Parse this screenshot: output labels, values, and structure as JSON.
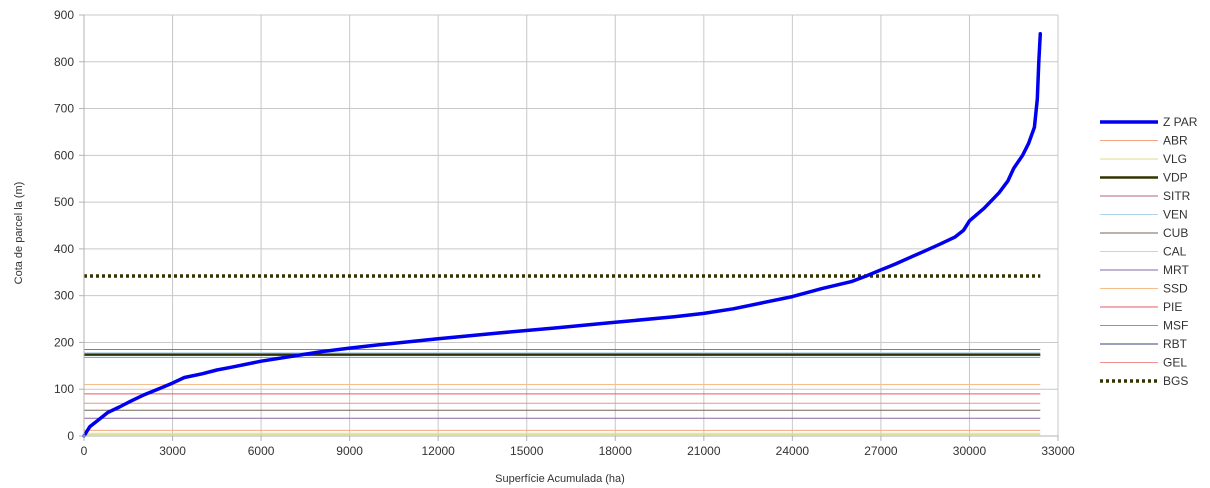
{
  "chart_data": {
    "type": "line",
    "xlabel": "Superfície Acumulada (ha)",
    "ylabel": "Cota de parcel la (m)",
    "xlim": [
      0,
      33000
    ],
    "ylim": [
      0,
      900
    ],
    "xticks": [
      0,
      3000,
      6000,
      9000,
      12000,
      15000,
      18000,
      21000,
      24000,
      27000,
      30000,
      33000
    ],
    "yticks": [
      0,
      100,
      200,
      300,
      400,
      500,
      600,
      700,
      800,
      900
    ],
    "xtick_labels": [
      "0",
      "3000",
      "6000",
      "9000",
      "12000",
      "15000",
      "18000",
      "21000",
      "24000",
      "27000",
      "30000",
      "33000"
    ],
    "ytick_labels": [
      "0",
      "100",
      "200",
      "300",
      "400",
      "500",
      "600",
      "700",
      "800",
      "900"
    ],
    "grid": true,
    "legend_position": "right",
    "series": [
      {
        "name": "Z PAR",
        "color": "#0000ee",
        "style": "solid-thick",
        "x": [
          0,
          200,
          500,
          800,
          1200,
          1600,
          2000,
          2500,
          3000,
          3400,
          4000,
          4500,
          5000,
          6000,
          7000,
          8000,
          9000,
          10000,
          12000,
          14000,
          16000,
          18000,
          20000,
          21000,
          22000,
          23000,
          24000,
          25000,
          26000,
          26500,
          27000,
          27500,
          28000,
          28500,
          29000,
          29500,
          29800,
          30000,
          30500,
          31000,
          31300,
          31500,
          31800,
          32000,
          32200,
          32300,
          32350,
          32400
        ],
        "y": [
          0,
          20,
          35,
          50,
          62,
          75,
          87,
          100,
          113,
          125,
          133,
          141,
          147,
          160,
          170,
          180,
          188,
          195,
          208,
          220,
          231,
          243,
          255,
          262,
          272,
          285,
          298,
          315,
          330,
          342,
          355,
          368,
          382,
          396,
          410,
          425,
          440,
          460,
          487,
          520,
          545,
          572,
          600,
          625,
          660,
          720,
          800,
          860
        ]
      },
      {
        "name": "ABR",
        "color": "#f4a582",
        "style": "solid",
        "value": 12
      },
      {
        "name": "VLG",
        "color": "#e6d88c",
        "style": "solid",
        "value": 6
      },
      {
        "name": "VDP",
        "color": "#333300",
        "style": "solid-bold",
        "value": 174
      },
      {
        "name": "SITR",
        "color": "#b2667a",
        "style": "solid",
        "value": 185
      },
      {
        "name": "VEN",
        "color": "#b0d4ea",
        "style": "solid",
        "value": 178
      },
      {
        "name": "CUB",
        "color": "#776655",
        "style": "solid",
        "value": 55
      },
      {
        "name": "CAL",
        "color": "#d6dc8c",
        "style": "solid",
        "value": 3
      },
      {
        "name": "MRT",
        "color": "#8866aa",
        "style": "solid",
        "value": 38
      },
      {
        "name": "SSD",
        "color": "#f6be8c",
        "style": "solid",
        "value": 110
      },
      {
        "name": "PIE",
        "color": "#ee5566",
        "style": "solid",
        "value": 90
      },
      {
        "name": "MSF",
        "color": "#55aadd",
        "style": "solid",
        "value": 168
      },
      {
        "name": "RBT",
        "color": "#334477",
        "style": "solid",
        "value": 172
      },
      {
        "name": "GEL",
        "color": "#f09090",
        "style": "solid",
        "value": 70
      },
      {
        "name": "BGS",
        "color": "#333300",
        "style": "dotted",
        "value": 342
      }
    ]
  }
}
